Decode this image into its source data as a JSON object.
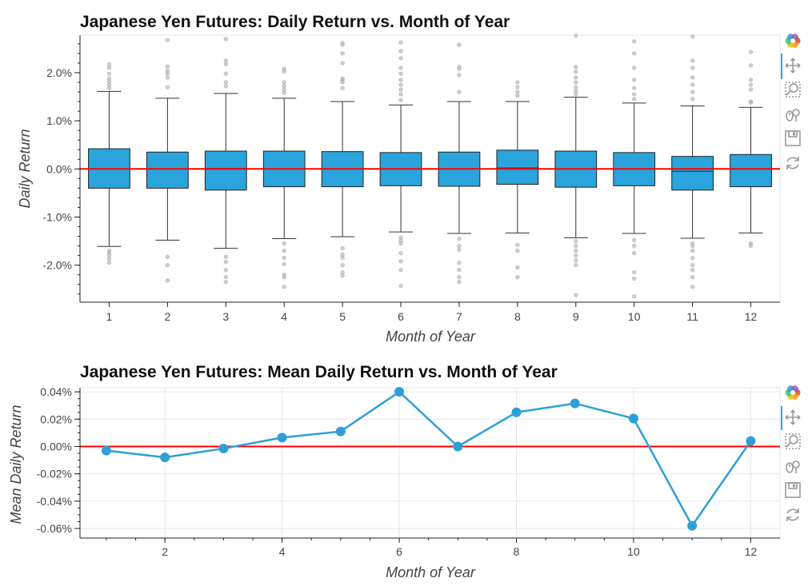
{
  "colors": {
    "box_fill": "#2aa4dc",
    "line": "#2e9fd6",
    "zero_line": "#ff0000",
    "outlier": "#bbbbbb",
    "grid": "#e6e6e6"
  },
  "plot1": {
    "toolbar_icons": [
      "bokeh-logo-icon",
      "pan-icon",
      "box-zoom-icon",
      "wheel-zoom-icon",
      "save-icon",
      "reset-icon"
    ]
  },
  "plot2": {
    "toolbar_icons": [
      "bokeh-logo-icon",
      "pan-icon",
      "box-zoom-icon",
      "wheel-zoom-icon",
      "save-icon",
      "reset-icon"
    ]
  },
  "chart_data": [
    {
      "type": "box",
      "title": "Japanese Yen Futures: Daily Return vs. Month of Year",
      "xlabel": "Month of Year",
      "ylabel": "Daily Return",
      "categories": [
        "1",
        "2",
        "3",
        "4",
        "5",
        "6",
        "7",
        "8",
        "9",
        "10",
        "11",
        "12"
      ],
      "ylim": [
        -0.0277,
        0.0278
      ],
      "yticks": [
        -0.02,
        -0.01,
        0.0,
        0.01,
        0.02
      ],
      "ytick_labels": [
        "-2.0%",
        "-1.0%",
        "0.0%",
        "1.0%",
        "2.0%"
      ],
      "reference_line": 0.0,
      "grid": false,
      "boxes": [
        {
          "month": 1,
          "q1": -0.004,
          "median": 0.0,
          "q3": 0.0042,
          "lower": -0.0161,
          "upper": 0.0161
        },
        {
          "month": 2,
          "q1": -0.004,
          "median": 0.0,
          "q3": 0.0035,
          "lower": -0.0148,
          "upper": 0.0147
        },
        {
          "month": 3,
          "q1": -0.0044,
          "median": 0.0001,
          "q3": 0.0037,
          "lower": -0.0165,
          "upper": 0.0157
        },
        {
          "month": 4,
          "q1": -0.0037,
          "median": 0.0,
          "q3": 0.0037,
          "lower": -0.0145,
          "upper": 0.0147
        },
        {
          "month": 5,
          "q1": -0.0037,
          "median": 0.0,
          "q3": 0.0036,
          "lower": -0.0141,
          "upper": 0.014
        },
        {
          "month": 6,
          "q1": -0.0035,
          "median": 0.0,
          "q3": 0.0034,
          "lower": -0.0131,
          "upper": 0.0133
        },
        {
          "month": 7,
          "q1": -0.0036,
          "median": 0.0,
          "q3": 0.0035,
          "lower": -0.0134,
          "upper": 0.014
        },
        {
          "month": 8,
          "q1": -0.0032,
          "median": 0.0002,
          "q3": 0.0039,
          "lower": -0.0133,
          "upper": 0.014
        },
        {
          "month": 9,
          "q1": -0.0038,
          "median": 0.0,
          "q3": 0.0037,
          "lower": -0.0143,
          "upper": 0.0149
        },
        {
          "month": 10,
          "q1": -0.0035,
          "median": 0.0,
          "q3": 0.0034,
          "lower": -0.0134,
          "upper": 0.0137
        },
        {
          "month": 11,
          "q1": -0.0044,
          "median": -0.0005,
          "q3": 0.0026,
          "lower": -0.0144,
          "upper": 0.0131
        },
        {
          "month": 12,
          "q1": -0.0037,
          "median": 0.0,
          "q3": 0.003,
          "lower": -0.0133,
          "upper": 0.0128
        }
      ],
      "outliers": [
        {
          "month": 1,
          "values": [
            0.0217,
            0.021,
            0.0198,
            0.0188,
            0.0182,
            0.0175,
            0.0168,
            -0.017,
            -0.0175,
            -0.018,
            -0.0187,
            -0.0195
          ]
        },
        {
          "month": 2,
          "values": [
            0.0268,
            0.0213,
            0.0204,
            0.0198,
            0.019,
            0.017,
            -0.0183,
            -0.02,
            -0.0232
          ]
        },
        {
          "month": 3,
          "values": [
            0.027,
            0.0225,
            0.0218,
            0.0198,
            0.018,
            0.0172,
            -0.0183,
            -0.0193,
            -0.021,
            -0.0225,
            -0.0235
          ]
        },
        {
          "month": 4,
          "values": [
            0.0208,
            0.0203,
            0.018,
            0.0172,
            0.0165,
            0.0158,
            -0.0155,
            -0.017,
            -0.0185,
            -0.0198,
            -0.022,
            -0.0225,
            -0.0245
          ]
        },
        {
          "month": 5,
          "values": [
            0.0262,
            0.0258,
            0.024,
            0.022,
            0.0188,
            0.0184,
            0.018,
            0.0168,
            -0.0165,
            -0.0178,
            -0.0185,
            -0.02,
            -0.0215,
            -0.0222
          ]
        },
        {
          "month": 6,
          "values": [
            0.0263,
            0.0245,
            0.023,
            0.021,
            0.0198,
            0.0185,
            0.0175,
            0.0165,
            0.0155,
            0.0143,
            -0.0143,
            -0.015,
            -0.0155,
            -0.0175,
            -0.0192,
            -0.021,
            -0.0243
          ]
        },
        {
          "month": 7,
          "values": [
            0.0258,
            0.0212,
            0.0208,
            0.0195,
            0.016,
            -0.0145,
            -0.016,
            -0.0168,
            -0.0195,
            -0.021,
            -0.0225,
            -0.0235
          ]
        },
        {
          "month": 8,
          "values": [
            0.018,
            0.017,
            0.016,
            0.0152,
            -0.0158,
            -0.017,
            -0.0205,
            -0.0225
          ]
        },
        {
          "month": 9,
          "values": [
            0.0277,
            0.0212,
            0.0202,
            0.019,
            0.018,
            0.017,
            0.0162,
            0.0155,
            -0.015,
            -0.016,
            -0.017,
            -0.018,
            -0.019,
            -0.02,
            -0.0262
          ]
        },
        {
          "month": 10,
          "values": [
            0.0265,
            0.024,
            0.021,
            0.0185,
            0.0168,
            0.0155,
            0.0145,
            -0.0148,
            -0.016,
            -0.0175,
            -0.0215,
            -0.0228,
            -0.0265
          ]
        },
        {
          "month": 11,
          "values": [
            0.0275,
            0.0225,
            0.021,
            0.019,
            0.0175,
            0.016,
            0.0145,
            -0.0155,
            -0.016,
            -0.017,
            -0.0185,
            -0.02,
            -0.021,
            -0.0225,
            -0.0245
          ]
        },
        {
          "month": 12,
          "values": [
            0.0243,
            0.0215,
            0.0185,
            0.0175,
            0.0165,
            0.014,
            0.0138,
            -0.0155,
            -0.016
          ]
        }
      ]
    },
    {
      "type": "line",
      "title": "Japanese Yen Futures: Mean Daily Return vs. Month of Year",
      "xlabel": "Month of Year",
      "ylabel": "Mean Daily Return",
      "x": [
        1,
        2,
        3,
        4,
        5,
        6,
        7,
        8,
        9,
        10,
        11,
        12
      ],
      "y": [
        -3e-05,
        -8e-05,
        -1.5e-05,
        6.5e-05,
        0.00011,
        0.0004,
        0.0,
        0.00025,
        0.000315,
        0.000205,
        -0.00058,
        4e-05
      ],
      "xlim": [
        0.55,
        12.5
      ],
      "ylim": [
        -0.00067,
        0.00043
      ],
      "xticks": [
        2,
        4,
        6,
        8,
        10,
        12
      ],
      "xtick_labels": [
        "2",
        "4",
        "6",
        "8",
        "10",
        "12"
      ],
      "yticks": [
        -0.0006,
        -0.0004,
        -0.0002,
        0.0,
        0.0002,
        0.0004
      ],
      "ytick_labels": [
        "-0.06%",
        "-0.04%",
        "-0.02%",
        "0.00%",
        "0.02%",
        "0.04%"
      ],
      "reference_line": 0.0,
      "grid": true
    }
  ]
}
